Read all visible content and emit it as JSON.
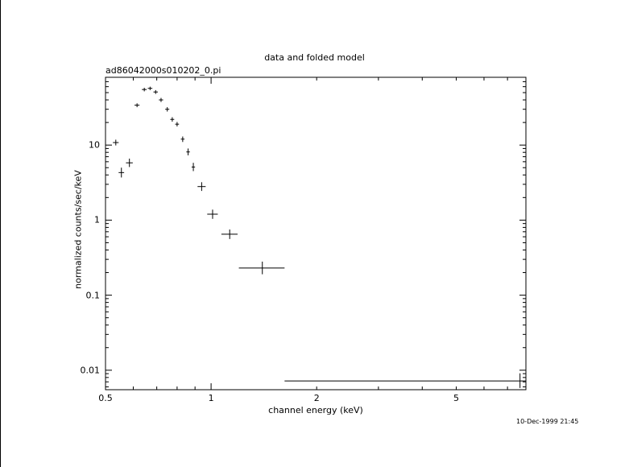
{
  "chart_data": {
    "type": "scatter",
    "title": "data and folded model",
    "subtitle": "ad86042000s010202_0.pi",
    "xlabel": "channel energy (keV)",
    "ylabel": "normalized counts/sec/keV",
    "xscale": "log",
    "yscale": "log",
    "xlim": [
      0.5,
      7.9
    ],
    "ylim": [
      0.0055,
      80
    ],
    "x_ticks": [
      {
        "value": 0.5,
        "label": "0.5"
      },
      {
        "value": 1,
        "label": "1"
      },
      {
        "value": 2,
        "label": "2"
      },
      {
        "value": 5,
        "label": "5"
      }
    ],
    "y_ticks": [
      {
        "value": 0.01,
        "label": "0.01"
      },
      {
        "value": 0.1,
        "label": "0.1"
      },
      {
        "value": 1,
        "label": "1"
      },
      {
        "value": 10,
        "label": "10"
      }
    ],
    "grid": false,
    "points": [
      {
        "x": 0.535,
        "xlo": 0.525,
        "xhi": 0.545,
        "y": 10.8,
        "ylo": 9.9,
        "yhi": 11.8
      },
      {
        "x": 0.555,
        "xlo": 0.545,
        "xhi": 0.565,
        "y": 4.3,
        "ylo": 3.7,
        "yhi": 5.0
      },
      {
        "x": 0.585,
        "xlo": 0.572,
        "xhi": 0.598,
        "y": 5.8,
        "ylo": 5.1,
        "yhi": 6.6
      },
      {
        "x": 0.615,
        "xlo": 0.605,
        "xhi": 0.625,
        "y": 34,
        "ylo": 32,
        "yhi": 36
      },
      {
        "x": 0.645,
        "xlo": 0.635,
        "xhi": 0.655,
        "y": 55,
        "ylo": 52,
        "yhi": 58
      },
      {
        "x": 0.67,
        "xlo": 0.66,
        "xhi": 0.68,
        "y": 57,
        "ylo": 54,
        "yhi": 60
      },
      {
        "x": 0.695,
        "xlo": 0.685,
        "xhi": 0.705,
        "y": 51,
        "ylo": 48,
        "yhi": 54
      },
      {
        "x": 0.72,
        "xlo": 0.71,
        "xhi": 0.73,
        "y": 40,
        "ylo": 37.5,
        "yhi": 42.5
      },
      {
        "x": 0.75,
        "xlo": 0.74,
        "xhi": 0.76,
        "y": 30,
        "ylo": 28,
        "yhi": 32
      },
      {
        "x": 0.775,
        "xlo": 0.765,
        "xhi": 0.785,
        "y": 22,
        "ylo": 20.5,
        "yhi": 23.5
      },
      {
        "x": 0.8,
        "xlo": 0.79,
        "xhi": 0.81,
        "y": 19,
        "ylo": 17.7,
        "yhi": 20.3
      },
      {
        "x": 0.83,
        "xlo": 0.82,
        "xhi": 0.84,
        "y": 12,
        "ylo": 11,
        "yhi": 13
      },
      {
        "x": 0.86,
        "xlo": 0.85,
        "xhi": 0.87,
        "y": 8.1,
        "ylo": 7.3,
        "yhi": 9.0
      },
      {
        "x": 0.89,
        "xlo": 0.88,
        "xhi": 0.9,
        "y": 5.1,
        "ylo": 4.5,
        "yhi": 5.8
      },
      {
        "x": 0.94,
        "xlo": 0.915,
        "xhi": 0.965,
        "y": 2.8,
        "ylo": 2.45,
        "yhi": 3.2
      },
      {
        "x": 1.01,
        "xlo": 0.975,
        "xhi": 1.045,
        "y": 1.2,
        "ylo": 1.04,
        "yhi": 1.38
      },
      {
        "x": 1.13,
        "xlo": 1.07,
        "xhi": 1.19,
        "y": 0.65,
        "ylo": 0.56,
        "yhi": 0.75
      },
      {
        "x": 1.4,
        "xlo": 1.2,
        "xhi": 1.62,
        "y": 0.23,
        "ylo": 0.19,
        "yhi": 0.28
      },
      {
        "x": 7.6,
        "xlo": 1.62,
        "xhi": 7.9,
        "y": 0.0072,
        "ylo": 0.0058,
        "yhi": 0.0091
      }
    ]
  },
  "timestamp": "10-Dec-1999 21:45"
}
